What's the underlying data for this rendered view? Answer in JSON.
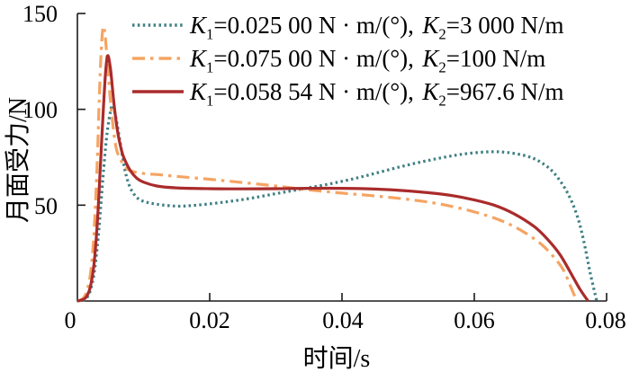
{
  "figure": {
    "background": "#ffffff",
    "axis_color": "#1a1a1a"
  },
  "chart_data": {
    "type": "line",
    "title": "",
    "xlabel": "时间/s",
    "ylabel": "月面受力/N",
    "xlim": [
      0,
      0.08
    ],
    "ylim": [
      0,
      150
    ],
    "x_ticks": [
      0,
      0.02,
      0.04,
      0.06,
      0.08
    ],
    "x_tick_labels": [
      "0",
      "0.02",
      "0.04",
      "0.06",
      "0.08"
    ],
    "y_ticks": [
      50,
      100,
      150
    ],
    "y_tick_labels": [
      "50",
      "100",
      "150"
    ],
    "grid": false,
    "legend_position": "top-inside",
    "series": [
      {
        "name": "K1=0.025 00 N·m/(°), K2=3 000 N/m",
        "color": "#3F7F83",
        "line_style": "dotted",
        "peak_N": 102,
        "end_time_s": 0.0785,
        "points": [
          [
            0,
            0
          ],
          [
            0.001,
            0.5
          ],
          [
            0.0015,
            2
          ],
          [
            0.002,
            6
          ],
          [
            0.0025,
            14
          ],
          [
            0.003,
            28
          ],
          [
            0.0035,
            48
          ],
          [
            0.004,
            70
          ],
          [
            0.0045,
            88
          ],
          [
            0.005,
            99
          ],
          [
            0.0053,
            102
          ],
          [
            0.0058,
            96
          ],
          [
            0.0065,
            82
          ],
          [
            0.0072,
            68
          ],
          [
            0.008,
            59
          ],
          [
            0.009,
            54
          ],
          [
            0.01,
            52
          ],
          [
            0.012,
            50.5
          ],
          [
            0.015,
            49.5
          ],
          [
            0.018,
            50
          ],
          [
            0.022,
            51.5
          ],
          [
            0.026,
            53.5
          ],
          [
            0.03,
            56
          ],
          [
            0.034,
            58.5
          ],
          [
            0.038,
            61
          ],
          [
            0.042,
            64
          ],
          [
            0.046,
            67.5
          ],
          [
            0.05,
            71
          ],
          [
            0.054,
            74
          ],
          [
            0.058,
            76.5
          ],
          [
            0.062,
            77.8
          ],
          [
            0.065,
            77.5
          ],
          [
            0.068,
            75.5
          ],
          [
            0.07,
            72.5
          ],
          [
            0.072,
            67
          ],
          [
            0.074,
            57
          ],
          [
            0.0755,
            45
          ],
          [
            0.0765,
            32
          ],
          [
            0.0775,
            15
          ],
          [
            0.0785,
            0
          ]
        ]
      },
      {
        "name": "K1=0.075 00 N·m/(°), K2=100 N/m",
        "color": "#F5A463",
        "line_style": "dashdot",
        "peak_N": 143,
        "end_time_s": 0.0755,
        "points": [
          [
            0,
            0
          ],
          [
            0.0005,
            0.5
          ],
          [
            0.001,
            2
          ],
          [
            0.0015,
            6
          ],
          [
            0.002,
            15
          ],
          [
            0.0025,
            35
          ],
          [
            0.003,
            72
          ],
          [
            0.0033,
            105
          ],
          [
            0.0036,
            131
          ],
          [
            0.0039,
            143
          ],
          [
            0.0042,
            138
          ],
          [
            0.0046,
            122
          ],
          [
            0.005,
            104
          ],
          [
            0.0055,
            88
          ],
          [
            0.006,
            78
          ],
          [
            0.007,
            71
          ],
          [
            0.008,
            68
          ],
          [
            0.01,
            66.5
          ],
          [
            0.012,
            66
          ],
          [
            0.015,
            65
          ],
          [
            0.02,
            63.5
          ],
          [
            0.025,
            61.8
          ],
          [
            0.03,
            60
          ],
          [
            0.035,
            58
          ],
          [
            0.04,
            56.3
          ],
          [
            0.045,
            54.8
          ],
          [
            0.05,
            53
          ],
          [
            0.055,
            50.5
          ],
          [
            0.06,
            46.5
          ],
          [
            0.064,
            42
          ],
          [
            0.067,
            37
          ],
          [
            0.07,
            30
          ],
          [
            0.072,
            23
          ],
          [
            0.0735,
            16
          ],
          [
            0.0745,
            8
          ],
          [
            0.0755,
            0
          ]
        ]
      },
      {
        "name": "K1=0.058 54 N·m/(°), K2=967.6 N/m",
        "color": "#AA2B2B",
        "line_style": "solid",
        "peak_N": 128,
        "end_time_s": 0.0772,
        "points": [
          [
            0,
            0
          ],
          [
            0.001,
            1
          ],
          [
            0.0015,
            3
          ],
          [
            0.002,
            8
          ],
          [
            0.0025,
            19
          ],
          [
            0.003,
            40
          ],
          [
            0.0035,
            72
          ],
          [
            0.004,
            105
          ],
          [
            0.0043,
            121
          ],
          [
            0.0046,
            128
          ],
          [
            0.005,
            121
          ],
          [
            0.0055,
            104
          ],
          [
            0.006,
            90
          ],
          [
            0.0065,
            81
          ],
          [
            0.007,
            75
          ],
          [
            0.008,
            68
          ],
          [
            0.009,
            64
          ],
          [
            0.01,
            62
          ],
          [
            0.012,
            60
          ],
          [
            0.015,
            59
          ],
          [
            0.02,
            58.6
          ],
          [
            0.025,
            58.5
          ],
          [
            0.03,
            58.6
          ],
          [
            0.035,
            58.8
          ],
          [
            0.04,
            58.8
          ],
          [
            0.045,
            58.4
          ],
          [
            0.05,
            57.4
          ],
          [
            0.055,
            55.8
          ],
          [
            0.059,
            53.5
          ],
          [
            0.063,
            50
          ],
          [
            0.066,
            45.5
          ],
          [
            0.069,
            39
          ],
          [
            0.071,
            32.5
          ],
          [
            0.073,
            24
          ],
          [
            0.075,
            12
          ],
          [
            0.076,
            6
          ],
          [
            0.0772,
            0
          ]
        ]
      }
    ]
  },
  "legend": {
    "k_symbol": "K",
    "items": [
      {
        "k1_sub": "1",
        "k1_text": "=0.025 00 N · m/(°),",
        "k2_sub": "2",
        "k2_text": "=3 000 N/m"
      },
      {
        "k1_sub": "1",
        "k1_text": "=0.075 00 N · m/(°),",
        "k2_sub": "2",
        "k2_text": "=100 N/m"
      },
      {
        "k1_sub": "1",
        "k1_text": "=0.058 54 N · m/(°),",
        "k2_sub": "2",
        "k2_text": "=967.6 N/m"
      }
    ]
  }
}
